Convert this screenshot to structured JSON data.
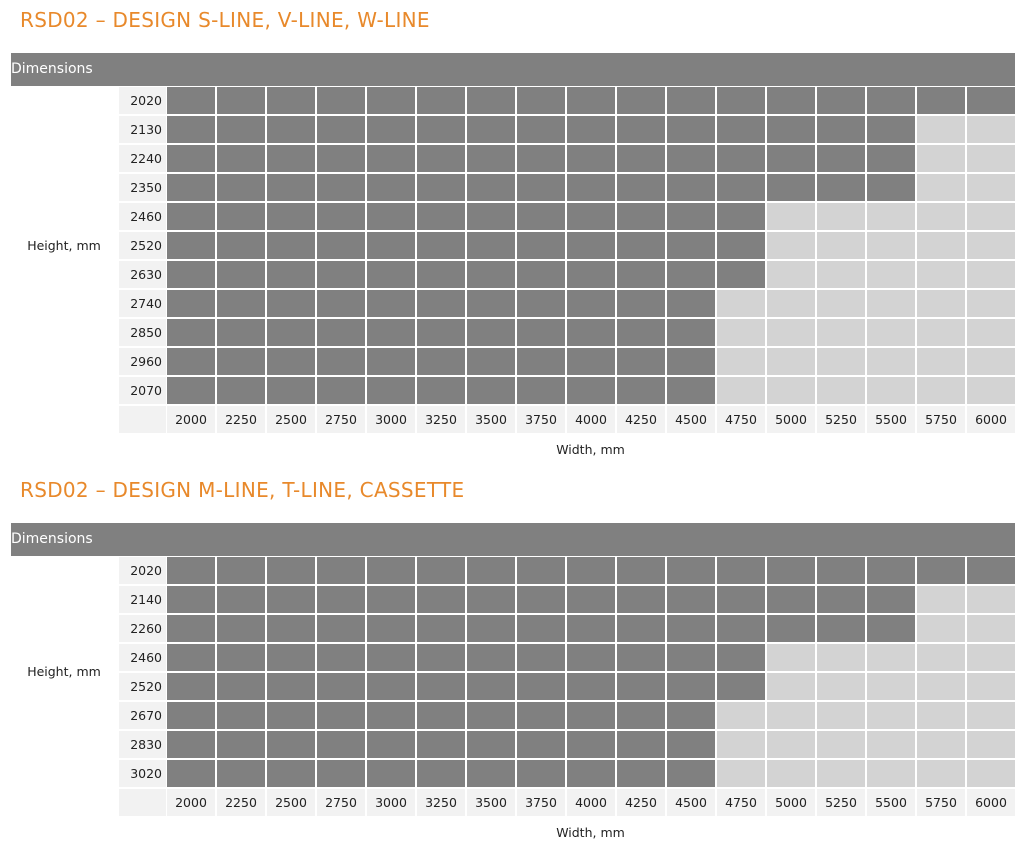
{
  "chart_data": [
    {
      "type": "table",
      "title": "RSD02 – DESIGN S-LINE, V-LINE, W-LINE",
      "header": "Dimensions",
      "ylabel": "Height, mm",
      "xlabel": "Width, mm",
      "heights": [
        "2020",
        "2130",
        "2240",
        "2350",
        "2460",
        "2520",
        "2630",
        "2740",
        "2850",
        "2960",
        "2070"
      ],
      "widths": [
        "2000",
        "2250",
        "2500",
        "2750",
        "3000",
        "3250",
        "3500",
        "3750",
        "4000",
        "4250",
        "4500",
        "4750",
        "5000",
        "5250",
        "5500",
        "5750",
        "6000"
      ],
      "available_columns_per_row": [
        17,
        15,
        15,
        15,
        12,
        12,
        12,
        11,
        11,
        11,
        11
      ],
      "colors": {
        "available": "#808080",
        "unavailable": "#d3d3d3",
        "title": "#e8892b"
      }
    },
    {
      "type": "table",
      "title": "RSD02 – DESIGN M-LINE, T-LINE, CASSETTE",
      "header": "Dimensions",
      "ylabel": "Height, mm",
      "xlabel": "Width, mm",
      "heights": [
        "2020",
        "2140",
        "2260",
        "2460",
        "2520",
        "2670",
        "2830",
        "3020"
      ],
      "widths": [
        "2000",
        "2250",
        "2500",
        "2750",
        "3000",
        "3250",
        "3500",
        "3750",
        "4000",
        "4250",
        "4500",
        "4750",
        "5000",
        "5250",
        "5500",
        "5750",
        "6000"
      ],
      "available_columns_per_row": [
        17,
        15,
        15,
        12,
        12,
        11,
        11,
        11
      ],
      "colors": {
        "available": "#808080",
        "unavailable": "#d3d3d3",
        "title": "#e8892b"
      }
    }
  ]
}
